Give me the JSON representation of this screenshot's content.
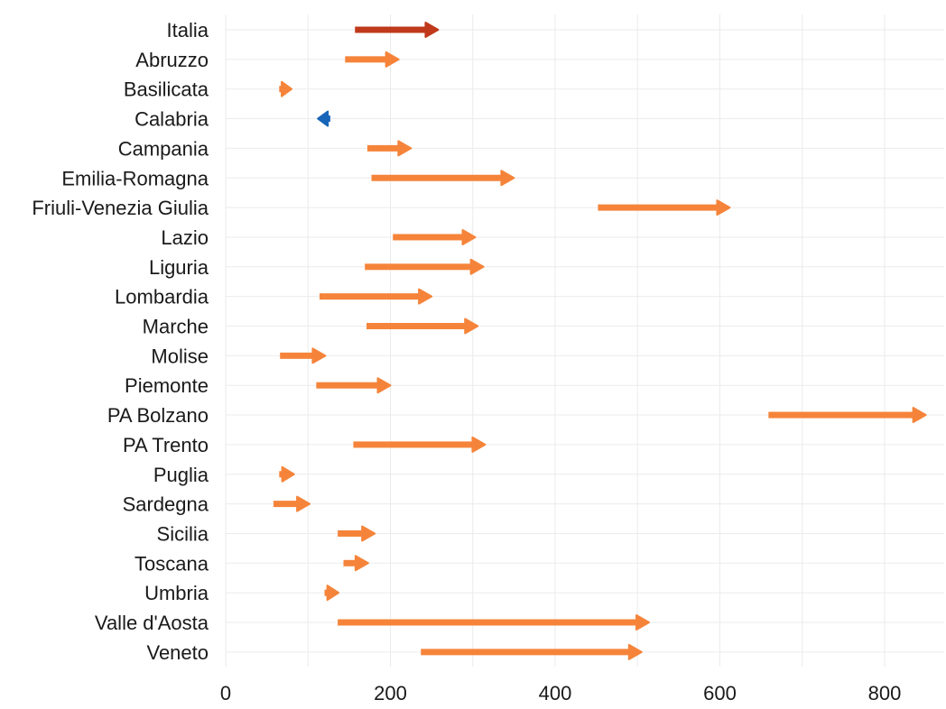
{
  "chart_data": {
    "type": "arrow",
    "title": "",
    "xlabel": "",
    "ylabel": "",
    "xlim": [
      0,
      870
    ],
    "xticks": [
      0,
      200,
      400,
      600,
      800
    ],
    "grid": true,
    "colors": {
      "national_increase": "#c0391b",
      "increase": "#f5843a",
      "decrease": "#1765b8",
      "grid": "#ebebeb"
    },
    "rows": [
      {
        "label": "Italia",
        "start": 157,
        "end": 258,
        "group": "national_increase"
      },
      {
        "label": "Abruzzo",
        "start": 145,
        "end": 210,
        "group": "increase"
      },
      {
        "label": "Basilicata",
        "start": 65,
        "end": 80,
        "group": "increase"
      },
      {
        "label": "Calabria",
        "start": 127,
        "end": 112,
        "group": "decrease"
      },
      {
        "label": "Campania",
        "start": 172,
        "end": 225,
        "group": "increase"
      },
      {
        "label": "Emilia-Romagna",
        "start": 177,
        "end": 350,
        "group": "increase"
      },
      {
        "label": "Friuli-Venezia Giulia",
        "start": 452,
        "end": 612,
        "group": "increase"
      },
      {
        "label": "Lazio",
        "start": 203,
        "end": 303,
        "group": "increase"
      },
      {
        "label": "Liguria",
        "start": 169,
        "end": 313,
        "group": "increase"
      },
      {
        "label": "Lombardia",
        "start": 114,
        "end": 250,
        "group": "increase"
      },
      {
        "label": "Marche",
        "start": 171,
        "end": 306,
        "group": "increase"
      },
      {
        "label": "Molise",
        "start": 66,
        "end": 121,
        "group": "increase"
      },
      {
        "label": "Piemonte",
        "start": 110,
        "end": 200,
        "group": "increase"
      },
      {
        "label": "PA Bolzano",
        "start": 659,
        "end": 850,
        "group": "increase"
      },
      {
        "label": "PA Trento",
        "start": 155,
        "end": 315,
        "group": "increase"
      },
      {
        "label": "Puglia",
        "start": 65,
        "end": 83,
        "group": "increase"
      },
      {
        "label": "Sardegna",
        "start": 58,
        "end": 102,
        "group": "increase"
      },
      {
        "label": "Sicilia",
        "start": 136,
        "end": 181,
        "group": "increase"
      },
      {
        "label": "Toscana",
        "start": 143,
        "end": 173,
        "group": "increase"
      },
      {
        "label": "Umbria",
        "start": 120,
        "end": 137,
        "group": "increase"
      },
      {
        "label": "Valle d'Aosta",
        "start": 136,
        "end": 514,
        "group": "increase"
      },
      {
        "label": "Veneto",
        "start": 237,
        "end": 505,
        "group": "increase"
      }
    ]
  }
}
